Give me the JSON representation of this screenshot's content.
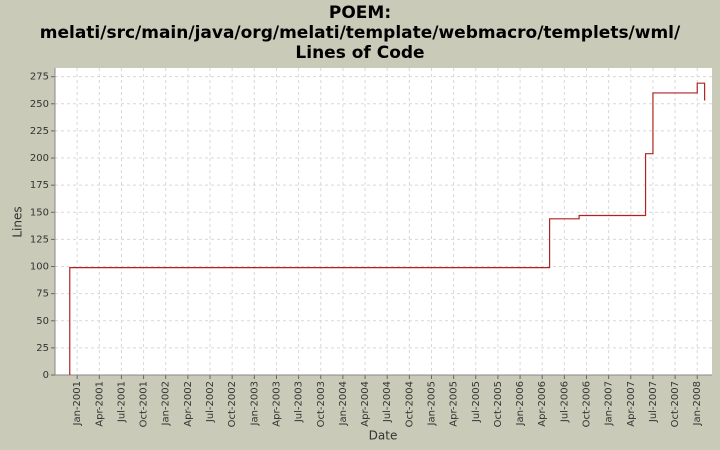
{
  "chart_data": {
    "type": "step-line",
    "title": [
      "POEM:",
      "melati/src/main/java/org/melati/template/webmacro/templets/wml/",
      "Lines of Code"
    ],
    "x_label": "Date",
    "y_label": "Lines",
    "series": [
      {
        "name": "Lines",
        "color": "#b22222",
        "x": [
          "2000-12",
          "2000-12",
          "2006-05",
          "2006-09",
          "2007-06",
          "2007-07",
          "2008-01",
          "2008-02"
        ],
        "values": [
          0,
          99,
          144,
          147,
          204,
          260,
          269,
          253
        ]
      }
    ],
    "xlim": [
      "2000-10",
      "2008-03"
    ],
    "xticks": [
      {
        "value": "2001-01",
        "label": "Jan-2001"
      },
      {
        "value": "2001-04",
        "label": "Apr-2001"
      },
      {
        "value": "2001-07",
        "label": "Jul-2001"
      },
      {
        "value": "2001-10",
        "label": "Oct-2001"
      },
      {
        "value": "2002-01",
        "label": "Jan-2002"
      },
      {
        "value": "2002-04",
        "label": "Apr-2002"
      },
      {
        "value": "2002-07",
        "label": "Jul-2002"
      },
      {
        "value": "2002-10",
        "label": "Oct-2002"
      },
      {
        "value": "2003-01",
        "label": "Jan-2003"
      },
      {
        "value": "2003-04",
        "label": "Apr-2003"
      },
      {
        "value": "2003-07",
        "label": "Jul-2003"
      },
      {
        "value": "2003-10",
        "label": "Oct-2003"
      },
      {
        "value": "2004-01",
        "label": "Jan-2004"
      },
      {
        "value": "2004-04",
        "label": "Apr-2004"
      },
      {
        "value": "2004-07",
        "label": "Jul-2004"
      },
      {
        "value": "2004-10",
        "label": "Oct-2004"
      },
      {
        "value": "2005-01",
        "label": "Jan-2005"
      },
      {
        "value": "2005-04",
        "label": "Apr-2005"
      },
      {
        "value": "2005-07",
        "label": "Jul-2005"
      },
      {
        "value": "2005-10",
        "label": "Oct-2005"
      },
      {
        "value": "2006-01",
        "label": "Jan-2006"
      },
      {
        "value": "2006-04",
        "label": "Apr-2006"
      },
      {
        "value": "2006-07",
        "label": "Jul-2006"
      },
      {
        "value": "2006-10",
        "label": "Oct-2006"
      },
      {
        "value": "2007-01",
        "label": "Jan-2007"
      },
      {
        "value": "2007-04",
        "label": "Apr-2007"
      },
      {
        "value": "2007-07",
        "label": "Jul-2007"
      },
      {
        "value": "2007-10",
        "label": "Oct-2007"
      },
      {
        "value": "2008-01",
        "label": "Jan-2008"
      }
    ],
    "ylim": [
      0,
      283
    ],
    "yticks": [
      0,
      25,
      50,
      75,
      100,
      125,
      150,
      175,
      200,
      225,
      250,
      275
    ],
    "grid": true
  }
}
